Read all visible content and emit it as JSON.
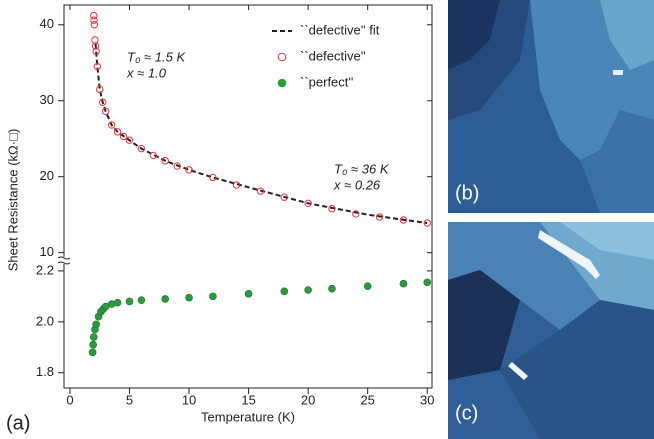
{
  "panels": {
    "a": "(a)",
    "b": "(b)",
    "c": "(c)"
  },
  "chart_data": [
    {
      "type": "scatter",
      "ylabel": "Sheet Resistance (kΩ·□)",
      "xlim": [
        -0.5,
        30.4
      ],
      "ylim": [
        9.3,
        42.6
      ],
      "yticks": [
        10,
        20,
        30,
        40
      ],
      "legend": "top-right",
      "annotations": [
        "T₀ ≈ 1.5 K",
        "x ≈ 1.0",
        "T₀ ≈ 36 K",
        "x ≈ 0.26"
      ],
      "series": [
        {
          "name": "``defective'' fit",
          "style": "dashed-line",
          "color": "#222222",
          "x": [
            2.15,
            2.3,
            2.5,
            2.75,
            3,
            3.5,
            4,
            5,
            6,
            8,
            10,
            12,
            15,
            20,
            25,
            30
          ],
          "values": [
            37.5,
            34.5,
            31.5,
            29.8,
            28.6,
            26.8,
            25.9,
            24.8,
            23.7,
            22.1,
            20.9,
            19.9,
            18.6,
            16.5,
            15,
            13.9
          ]
        },
        {
          "name": "``defective''",
          "style": "open-circle",
          "color": "#e8303a",
          "x": [
            2.0,
            2.02,
            2.05,
            2.1,
            2.15,
            2.2,
            2.3,
            2.5,
            2.75,
            3,
            3.5,
            4,
            4.5,
            5,
            6,
            7,
            8,
            9,
            10,
            12,
            14,
            16,
            18,
            20,
            22,
            24,
            26,
            28,
            30
          ],
          "values": [
            41.2,
            40.6,
            40,
            38,
            37.2,
            36.5,
            34.5,
            31.5,
            29.8,
            28.6,
            26.8,
            25.9,
            25.3,
            24.8,
            23.7,
            22.8,
            22.1,
            21.4,
            20.9,
            19.9,
            18.9,
            18.1,
            17.3,
            16.5,
            15.8,
            15.1,
            14.7,
            14.3,
            13.9
          ]
        }
      ]
    },
    {
      "type": "scatter",
      "xlabel": "Temperature (K)",
      "xlim": [
        -0.5,
        30.4
      ],
      "xticks": [
        0,
        5,
        10,
        15,
        20,
        25,
        30
      ],
      "ylim": [
        1.74,
        2.235
      ],
      "yticks": [
        1.8,
        {
          "value": 2,
          "label": "2.0"
        },
        2.2
      ],
      "series": [
        {
          "name": "``perfect''",
          "style": "filled-circle",
          "color": "#2e9a3e",
          "x": [
            1.9,
            1.95,
            2,
            2.1,
            2.2,
            2.4,
            2.6,
            2.8,
            3,
            3.5,
            4,
            5,
            6,
            8,
            10,
            12,
            15,
            18,
            20,
            22,
            25,
            28,
            30
          ],
          "values": [
            1.88,
            1.91,
            1.94,
            1.97,
            1.99,
            2.02,
            2.04,
            2.05,
            2.06,
            2.07,
            2.075,
            2.08,
            2.085,
            2.09,
            2.095,
            2.1,
            2.11,
            2.12,
            2.125,
            2.13,
            2.14,
            2.15,
            2.155
          ]
        }
      ]
    }
  ]
}
